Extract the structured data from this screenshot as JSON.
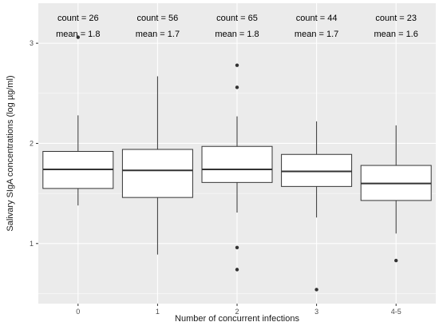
{
  "chart_data": {
    "type": "boxplot",
    "xlabel": "Number of concurrent infections",
    "ylabel": "Salivary SIgA concentrations (log µg/ml)",
    "categories": [
      "0",
      "1",
      "2",
      "3",
      "4-5"
    ],
    "y_ticks": [
      1,
      2,
      3
    ],
    "ylim": [
      0.4,
      3.4
    ],
    "grid": true,
    "background": "#ebebeb",
    "gridline_color": "#ffffff",
    "box_fill": "#ffffff",
    "line_color": "#333333",
    "annotations": [
      {
        "count": "count = 26",
        "mean": "mean = 1.8"
      },
      {
        "count": "count = 56",
        "mean": "mean = 1.7"
      },
      {
        "count": "count = 65",
        "mean": "mean = 1.8"
      },
      {
        "count": "count = 44",
        "mean": "mean = 1.7"
      },
      {
        "count": "count = 23",
        "mean": "mean = 1.6"
      }
    ],
    "boxes": [
      {
        "category": "0",
        "lower_whisker": 1.38,
        "q1": 1.55,
        "median": 1.74,
        "q3": 1.92,
        "upper_whisker": 2.28,
        "outliers": [
          3.06
        ]
      },
      {
        "category": "1",
        "lower_whisker": 0.89,
        "q1": 1.46,
        "median": 1.73,
        "q3": 1.94,
        "upper_whisker": 2.67,
        "outliers": []
      },
      {
        "category": "2",
        "lower_whisker": 1.31,
        "q1": 1.61,
        "median": 1.74,
        "q3": 1.97,
        "upper_whisker": 2.27,
        "outliers": [
          2.78,
          2.56,
          0.96,
          0.74
        ]
      },
      {
        "category": "3",
        "lower_whisker": 1.26,
        "q1": 1.57,
        "median": 1.72,
        "q3": 1.89,
        "upper_whisker": 2.22,
        "outliers": [
          0.54
        ]
      },
      {
        "category": "4-5",
        "lower_whisker": 1.1,
        "q1": 1.43,
        "median": 1.6,
        "q3": 1.78,
        "upper_whisker": 2.18,
        "outliers": [
          0.83
        ]
      }
    ]
  }
}
